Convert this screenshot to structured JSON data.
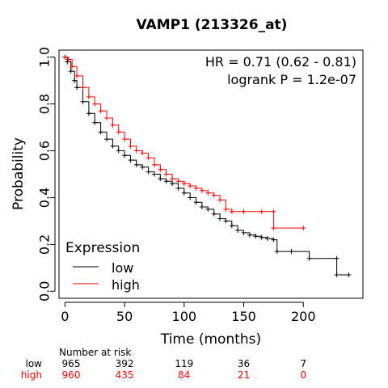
{
  "chart_data": {
    "type": "line",
    "title": "VAMP1 (213326_at)",
    "xlabel": "Time (months)",
    "ylabel": "Probability",
    "xlim": [
      -5,
      250
    ],
    "ylim": [
      -0.03,
      1.03
    ],
    "xticks": [
      0,
      50,
      100,
      150,
      200
    ],
    "yticks": [
      0.0,
      0.2,
      0.4,
      0.6,
      0.8,
      1.0
    ],
    "xtick_labels": [
      "0",
      "50",
      "100",
      "150",
      "200"
    ],
    "ytick_labels": [
      "0.0",
      "0.2",
      "0.4",
      "0.6",
      "0.8",
      "1.0"
    ],
    "annotations": [
      "HR = 0.71 (0.62 - 0.81)",
      "logrank P = 1.2e-07"
    ],
    "legend": {
      "title": "Expression",
      "placement": "bottom-left",
      "entries": [
        {
          "label": "low",
          "color": "#000000"
        },
        {
          "label": "high",
          "color": "#ff0000"
        }
      ]
    },
    "series": [
      {
        "name": "low",
        "color": "#000000",
        "points": [
          [
            0,
            1.0
          ],
          [
            2,
            0.98
          ],
          [
            5,
            0.94
          ],
          [
            8,
            0.9
          ],
          [
            10,
            0.87
          ],
          [
            15,
            0.81
          ],
          [
            20,
            0.76
          ],
          [
            25,
            0.72
          ],
          [
            30,
            0.68
          ],
          [
            35,
            0.65
          ],
          [
            40,
            0.62
          ],
          [
            45,
            0.6
          ],
          [
            50,
            0.58
          ],
          [
            55,
            0.56
          ],
          [
            60,
            0.54
          ],
          [
            65,
            0.53
          ],
          [
            70,
            0.51
          ],
          [
            75,
            0.5
          ],
          [
            80,
            0.48
          ],
          [
            85,
            0.47
          ],
          [
            90,
            0.46
          ],
          [
            95,
            0.44
          ],
          [
            100,
            0.42
          ],
          [
            105,
            0.4
          ],
          [
            110,
            0.38
          ],
          [
            115,
            0.36
          ],
          [
            120,
            0.35
          ],
          [
            125,
            0.33
          ],
          [
            130,
            0.31
          ],
          [
            135,
            0.3
          ],
          [
            140,
            0.28
          ],
          [
            145,
            0.26
          ],
          [
            150,
            0.25
          ],
          [
            155,
            0.24
          ],
          [
            160,
            0.235
          ],
          [
            165,
            0.23
          ],
          [
            170,
            0.225
          ],
          [
            175,
            0.22
          ],
          [
            178,
            0.17
          ],
          [
            190,
            0.17
          ],
          [
            205,
            0.14
          ],
          [
            228,
            0.14
          ],
          [
            228,
            0.07
          ],
          [
            238,
            0.07
          ]
        ]
      },
      {
        "name": "high",
        "color": "#ff0000",
        "points": [
          [
            0,
            1.0
          ],
          [
            3,
            0.99
          ],
          [
            6,
            0.96
          ],
          [
            10,
            0.92
          ],
          [
            15,
            0.87
          ],
          [
            20,
            0.83
          ],
          [
            25,
            0.8
          ],
          [
            30,
            0.77
          ],
          [
            35,
            0.74
          ],
          [
            40,
            0.71
          ],
          [
            45,
            0.68
          ],
          [
            50,
            0.65
          ],
          [
            55,
            0.62
          ],
          [
            60,
            0.6
          ],
          [
            65,
            0.59
          ],
          [
            70,
            0.57
          ],
          [
            75,
            0.54
          ],
          [
            80,
            0.52
          ],
          [
            85,
            0.5
          ],
          [
            90,
            0.48
          ],
          [
            95,
            0.47
          ],
          [
            100,
            0.46
          ],
          [
            105,
            0.45
          ],
          [
            110,
            0.44
          ],
          [
            115,
            0.43
          ],
          [
            120,
            0.42
          ],
          [
            125,
            0.41
          ],
          [
            130,
            0.39
          ],
          [
            135,
            0.35
          ],
          [
            140,
            0.34
          ],
          [
            150,
            0.34
          ],
          [
            165,
            0.34
          ],
          [
            175,
            0.34
          ],
          [
            175,
            0.27
          ],
          [
            200,
            0.27
          ]
        ]
      }
    ],
    "risk_table": {
      "header": "Number at risk",
      "times": [
        0,
        50,
        100,
        150,
        200
      ],
      "rows": [
        {
          "label": "low",
          "color": "#000000",
          "counts": [
            "965",
            "392",
            "119",
            "36",
            "7"
          ]
        },
        {
          "label": "high",
          "color": "#ff0000",
          "counts": [
            "960",
            "435",
            "84",
            "21",
            "0"
          ]
        }
      ]
    }
  }
}
